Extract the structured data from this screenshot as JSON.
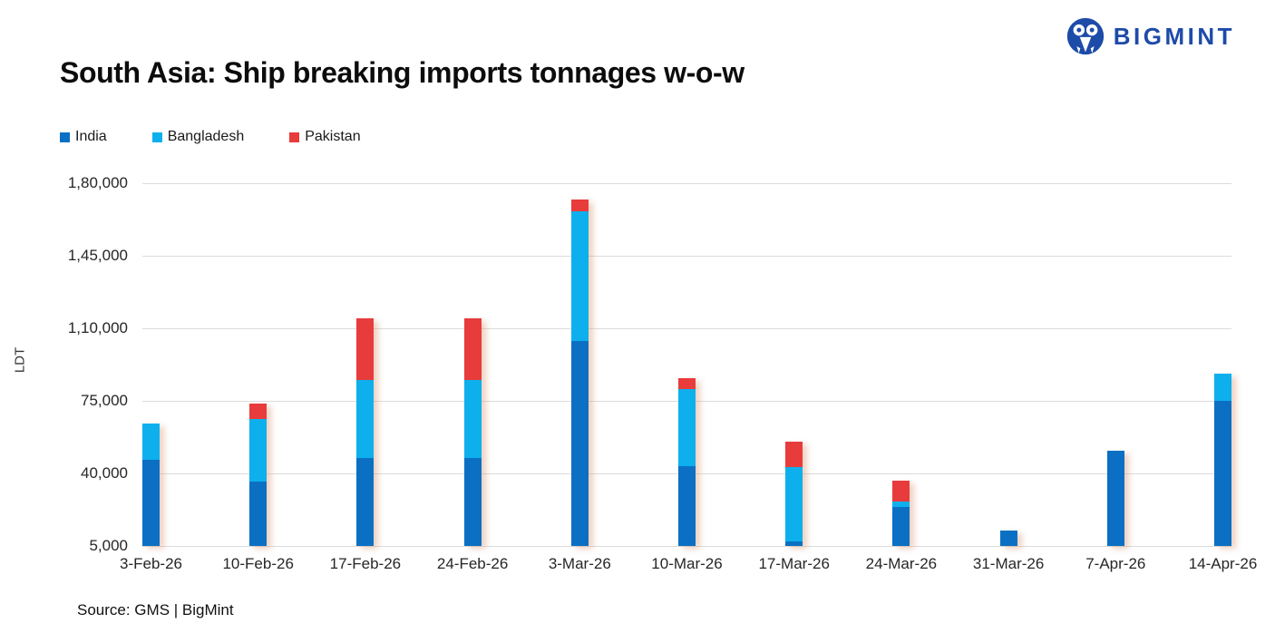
{
  "header": {
    "title": "South Asia: Ship breaking imports tonnages w-o-w",
    "logo_text": "BIGMINT",
    "logo_color": "#1d4ba8"
  },
  "source_note": "Source: GMS | BigMint",
  "chart_data": {
    "type": "bar",
    "stacked": true,
    "title": "South Asia: Ship breaking imports tonnages w-o-w",
    "unit": "LDT",
    "ylabel": "LDT",
    "xlabel": "",
    "grid": true,
    "legend_position": "top-left",
    "ylim": [
      5000,
      180000
    ],
    "y_ticks": [
      {
        "value": 5000,
        "label": "5,000"
      },
      {
        "value": 40000,
        "label": "40,000"
      },
      {
        "value": 75000,
        "label": "75,000"
      },
      {
        "value": 110000,
        "label": "1,10,000"
      },
      {
        "value": 145000,
        "label": "1,45,000"
      },
      {
        "value": 180000,
        "label": "1,80,000"
      }
    ],
    "categories": [
      "3-Feb-26",
      "10-Feb-26",
      "17-Feb-26",
      "24-Feb-26",
      "3-Mar-26",
      "10-Mar-26",
      "17-Mar-26",
      "24-Mar-26",
      "31-Mar-26",
      "7-Apr-26",
      "14-Apr-26"
    ],
    "series": [
      {
        "name": "India",
        "color": "#0b70c3",
        "values": [
          46500,
          36000,
          47500,
          47500,
          104000,
          43500,
          7000,
          24000,
          12500,
          51000,
          75000
        ]
      },
      {
        "name": "Bangladesh",
        "color": "#0db0ec",
        "values": [
          17500,
          30000,
          37500,
          37500,
          62500,
          37000,
          36000,
          2500,
          0,
          0,
          13000
        ]
      },
      {
        "name": "Pakistan",
        "color": "#e83b3c",
        "values": [
          0,
          7500,
          30000,
          30000,
          5500,
          5500,
          12500,
          10000,
          0,
          0,
          0
        ]
      }
    ]
  }
}
